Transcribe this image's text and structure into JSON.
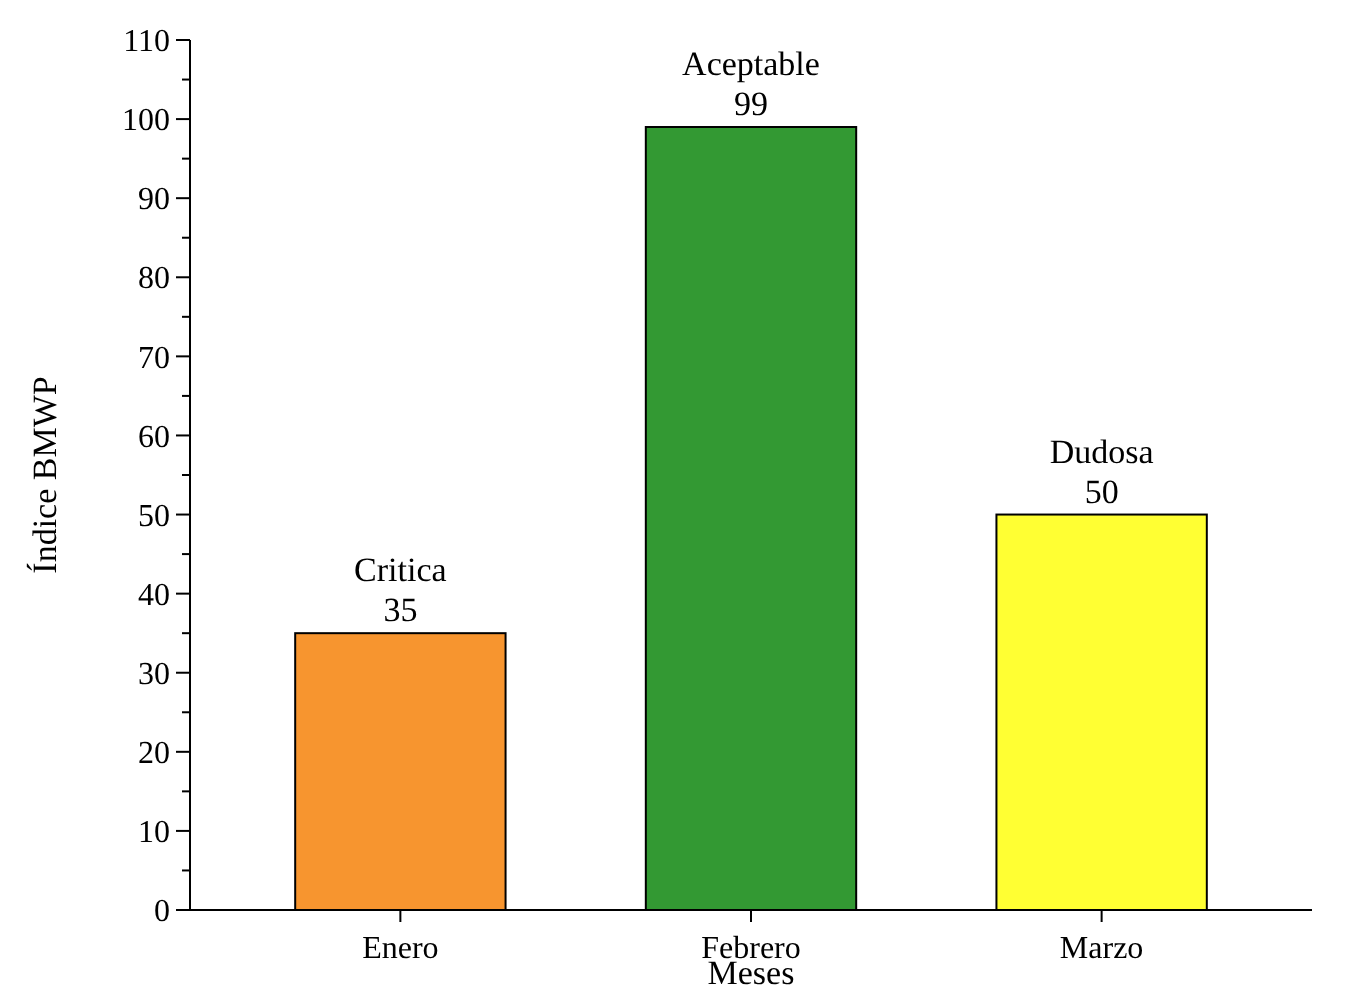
{
  "chart_data": {
    "type": "bar",
    "xlabel": "Meses",
    "ylabel": "Índice BMWP",
    "categories": [
      "Enero",
      "Febrero",
      "Marzo"
    ],
    "values": [
      35,
      99,
      50
    ],
    "colors": [
      "#f7952f",
      "#339933",
      "#ffff33"
    ],
    "ylim": [
      0,
      110
    ],
    "yticks": [
      0,
      {
        "value": 5,
        "label": null
      },
      10,
      {
        "value": 15,
        "label": null
      },
      20,
      {
        "value": 25,
        "label": null
      },
      30,
      {
        "value": 35,
        "label": null
      },
      40,
      {
        "value": 45,
        "label": null
      },
      50,
      {
        "value": 55,
        "label": null
      },
      60,
      {
        "value": 65,
        "label": null
      },
      70,
      {
        "value": 75,
        "label": null
      },
      80,
      {
        "value": 85,
        "label": null
      },
      90,
      {
        "value": 95,
        "label": null
      },
      100,
      {
        "value": 105,
        "label": null
      },
      110
    ],
    "data_labels": true,
    "annotations": [
      {
        "text": "Critica",
        "x": "Enero",
        "y": 35
      },
      {
        "text": "Aceptable",
        "x": "Febrero",
        "y": 99
      },
      {
        "text": "Dudosa",
        "x": "Marzo",
        "y": 50
      }
    ],
    "grid": false
  }
}
